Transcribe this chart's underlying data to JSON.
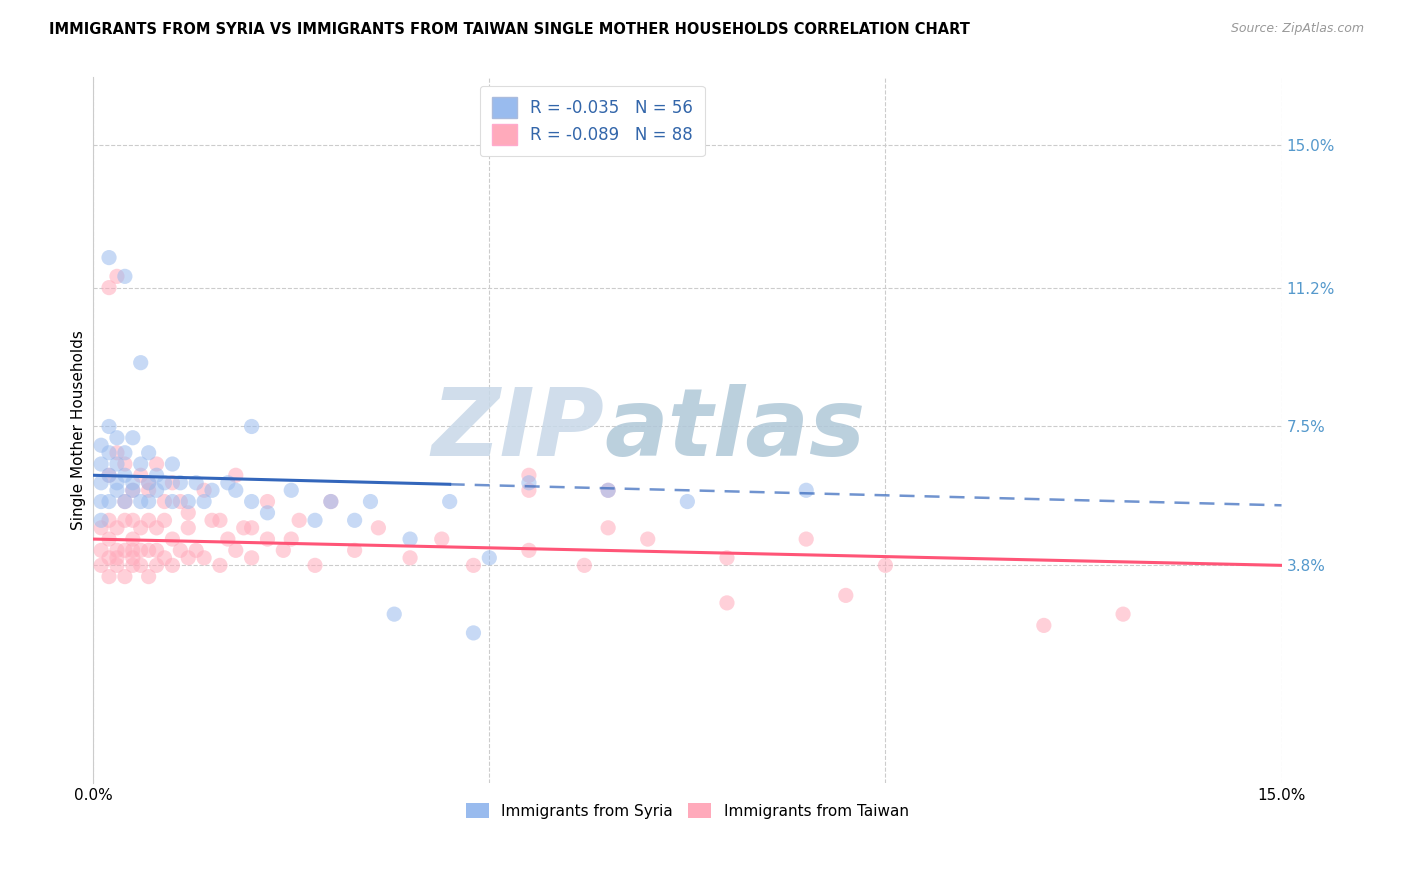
{
  "title": "IMMIGRANTS FROM SYRIA VS IMMIGRANTS FROM TAIWAN SINGLE MOTHER HOUSEHOLDS CORRELATION CHART",
  "source": "Source: ZipAtlas.com",
  "ylabel": "Single Mother Households",
  "y_tick_values": [
    0.038,
    0.075,
    0.112,
    0.15
  ],
  "y_tick_labels": [
    "3.8%",
    "7.5%",
    "11.2%",
    "15.0%"
  ],
  "xlim": [
    0.0,
    0.15
  ],
  "ylim": [
    -0.02,
    0.168
  ],
  "legend_syria_r": "R = -0.035",
  "legend_syria_n": "N = 56",
  "legend_taiwan_r": "R = -0.089",
  "legend_taiwan_n": "N = 88",
  "legend_label_syria": "Immigrants from Syria",
  "legend_label_taiwan": "Immigrants from Taiwan",
  "color_syria": "#99BBEE",
  "color_taiwan": "#FFAABB",
  "color_syria_line": "#3366BB",
  "color_taiwan_line": "#FF5577",
  "watermark_text": "ZIPatlas",
  "syria_trend_x0": 0.062,
  "syria_trend_x1": 0.054,
  "taiwan_trend_x0": 0.045,
  "taiwan_trend_x1": 0.038,
  "syria_x": [
    0.001,
    0.001,
    0.001,
    0.001,
    0.001,
    0.002,
    0.002,
    0.002,
    0.002,
    0.003,
    0.003,
    0.003,
    0.003,
    0.004,
    0.004,
    0.004,
    0.005,
    0.005,
    0.005,
    0.006,
    0.006,
    0.007,
    0.007,
    0.007,
    0.008,
    0.008,
    0.009,
    0.01,
    0.01,
    0.011,
    0.012,
    0.013,
    0.014,
    0.015,
    0.017,
    0.018,
    0.02,
    0.022,
    0.025,
    0.028,
    0.03,
    0.033,
    0.035,
    0.04,
    0.045,
    0.05,
    0.055,
    0.065,
    0.075,
    0.09,
    0.002,
    0.004,
    0.006,
    0.02,
    0.038,
    0.048
  ],
  "syria_y": [
    0.065,
    0.06,
    0.055,
    0.05,
    0.07,
    0.062,
    0.068,
    0.055,
    0.075,
    0.058,
    0.072,
    0.065,
    0.06,
    0.068,
    0.055,
    0.062,
    0.058,
    0.06,
    0.072,
    0.055,
    0.065,
    0.06,
    0.055,
    0.068,
    0.062,
    0.058,
    0.06,
    0.055,
    0.065,
    0.06,
    0.055,
    0.06,
    0.055,
    0.058,
    0.06,
    0.058,
    0.055,
    0.052,
    0.058,
    0.05,
    0.055,
    0.05,
    0.055,
    0.045,
    0.055,
    0.04,
    0.06,
    0.058,
    0.055,
    0.058,
    0.12,
    0.115,
    0.092,
    0.075,
    0.025,
    0.02
  ],
  "taiwan_x": [
    0.001,
    0.001,
    0.001,
    0.002,
    0.002,
    0.002,
    0.002,
    0.003,
    0.003,
    0.003,
    0.003,
    0.004,
    0.004,
    0.004,
    0.004,
    0.005,
    0.005,
    0.005,
    0.005,
    0.005,
    0.006,
    0.006,
    0.006,
    0.007,
    0.007,
    0.007,
    0.007,
    0.008,
    0.008,
    0.008,
    0.009,
    0.009,
    0.01,
    0.01,
    0.011,
    0.011,
    0.012,
    0.012,
    0.013,
    0.014,
    0.015,
    0.016,
    0.017,
    0.018,
    0.019,
    0.02,
    0.022,
    0.024,
    0.026,
    0.028,
    0.03,
    0.033,
    0.036,
    0.04,
    0.044,
    0.048,
    0.055,
    0.062,
    0.07,
    0.08,
    0.09,
    0.1,
    0.002,
    0.003,
    0.004,
    0.005,
    0.006,
    0.007,
    0.008,
    0.009,
    0.01,
    0.012,
    0.014,
    0.016,
    0.018,
    0.02,
    0.022,
    0.025,
    0.055,
    0.065,
    0.08,
    0.095,
    0.065,
    0.055,
    0.12,
    0.13,
    0.002,
    0.003
  ],
  "taiwan_y": [
    0.042,
    0.048,
    0.038,
    0.04,
    0.045,
    0.035,
    0.05,
    0.04,
    0.038,
    0.048,
    0.042,
    0.035,
    0.05,
    0.042,
    0.055,
    0.038,
    0.045,
    0.04,
    0.05,
    0.042,
    0.038,
    0.048,
    0.042,
    0.035,
    0.05,
    0.042,
    0.058,
    0.038,
    0.048,
    0.042,
    0.04,
    0.05,
    0.038,
    0.045,
    0.042,
    0.055,
    0.04,
    0.048,
    0.042,
    0.04,
    0.05,
    0.038,
    0.045,
    0.042,
    0.048,
    0.04,
    0.045,
    0.042,
    0.05,
    0.038,
    0.055,
    0.042,
    0.048,
    0.04,
    0.045,
    0.038,
    0.042,
    0.038,
    0.045,
    0.04,
    0.045,
    0.038,
    0.062,
    0.068,
    0.065,
    0.058,
    0.062,
    0.06,
    0.065,
    0.055,
    0.06,
    0.052,
    0.058,
    0.05,
    0.062,
    0.048,
    0.055,
    0.045,
    0.062,
    0.058,
    0.028,
    0.03,
    0.048,
    0.058,
    0.022,
    0.025,
    0.112,
    0.115
  ]
}
